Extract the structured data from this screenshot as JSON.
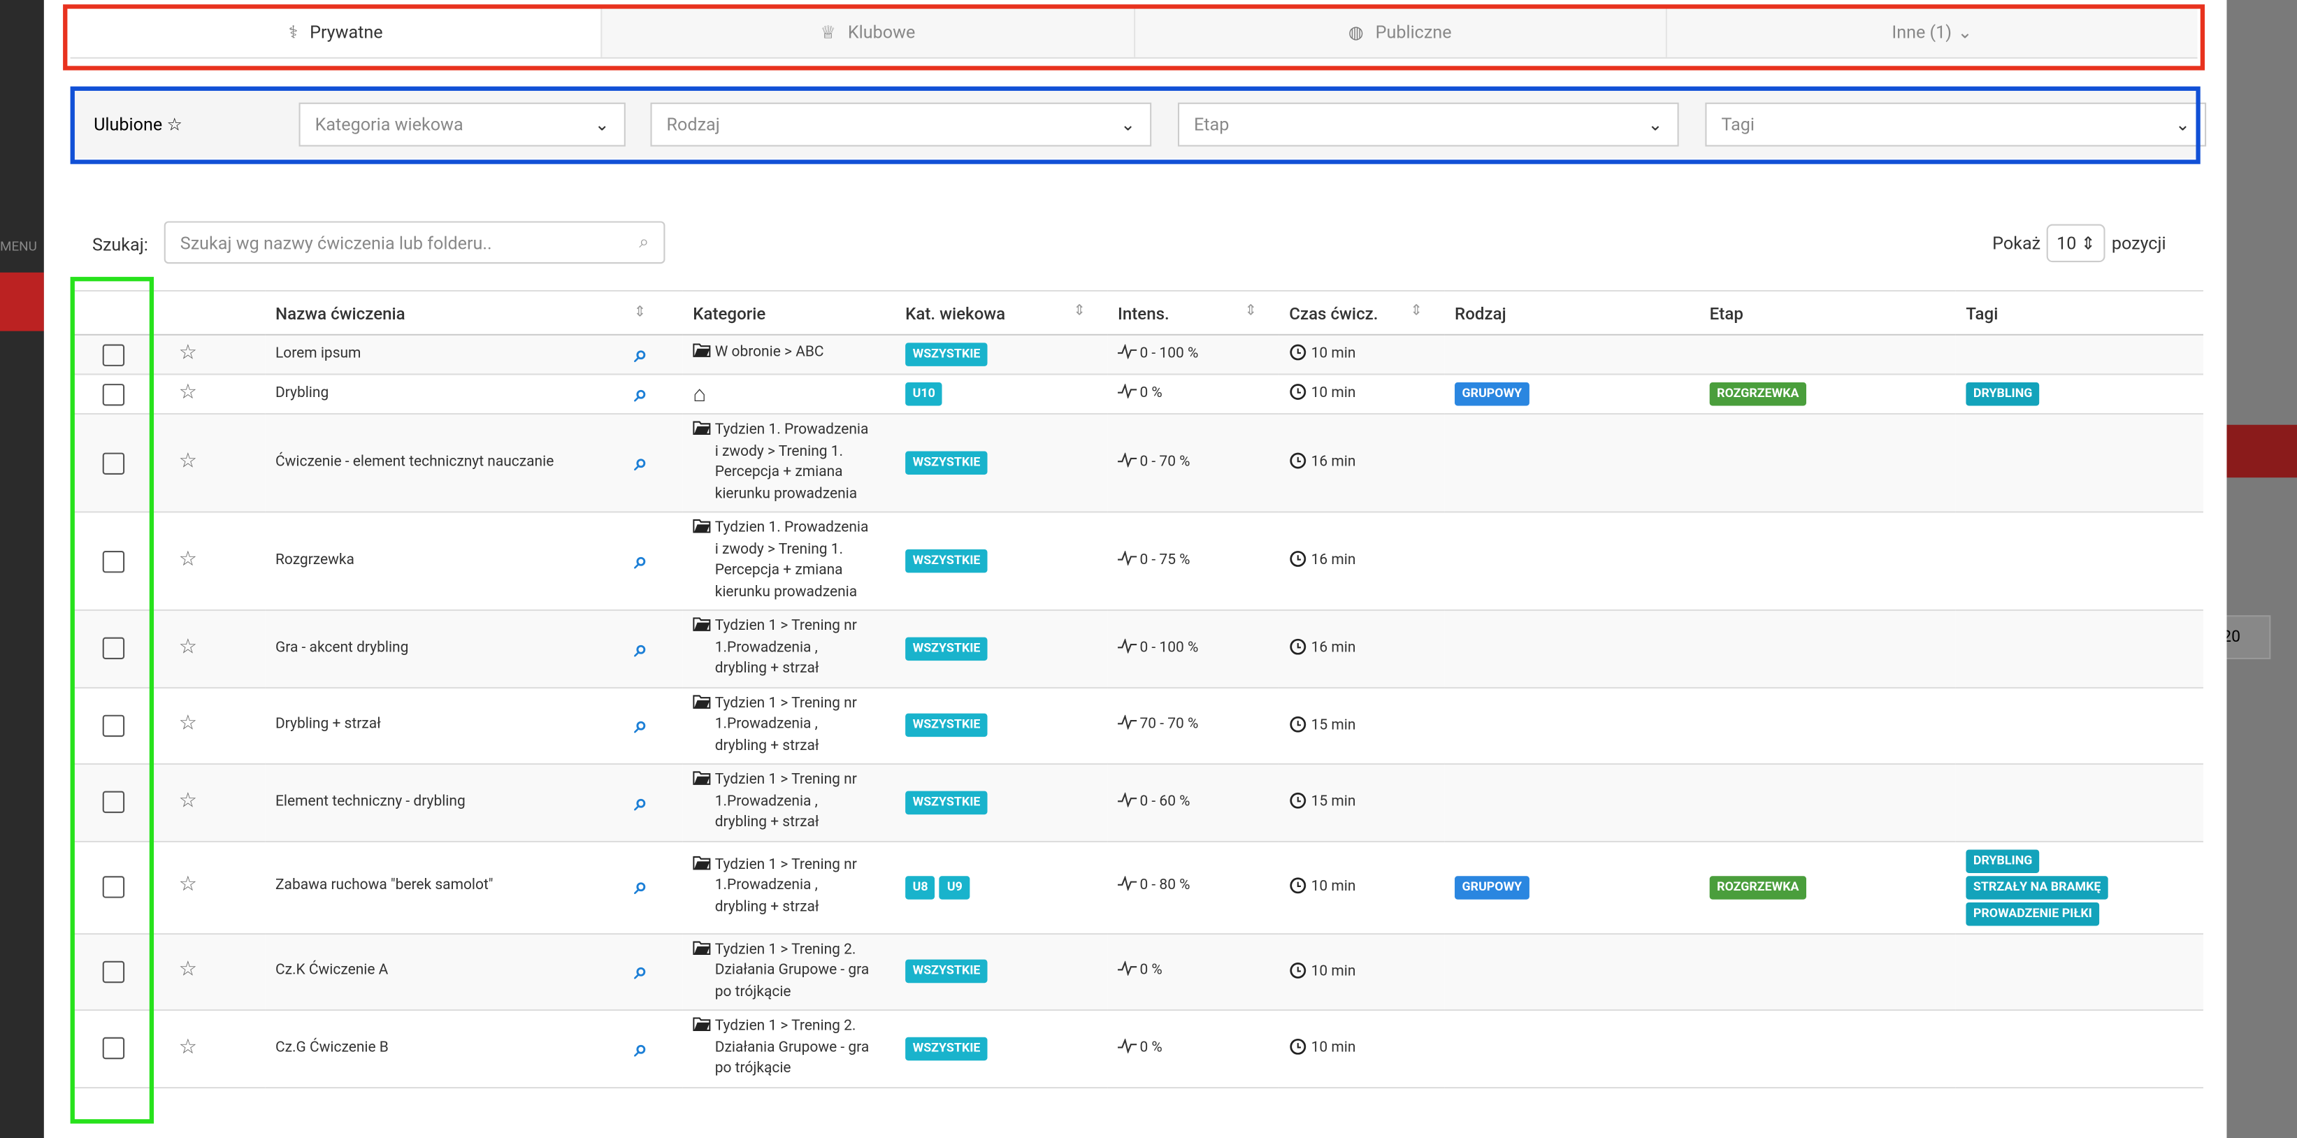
{
  "sidebar_menu": "MENU",
  "backdrop_page": "20",
  "tabs": [
    "Prywatne",
    "Klubowe",
    "Publiczne",
    "Inne (1)"
  ],
  "filters": {
    "favorites": "Ulubione",
    "selects": [
      "Kategoria wiekowa",
      "Rodzaj",
      "Etap",
      "Tagi"
    ]
  },
  "search": {
    "label": "Szukaj:",
    "placeholder": "Szukaj wg nazwy ćwiczenia lub folderu..",
    "show_before": "Pokaż",
    "page_size": 10,
    "show_after": "pozycji"
  },
  "table": {
    "headers": [
      "Nazwa ćwiczenia",
      "Kategorie",
      "Kat. wiekowa",
      "Intens.",
      "Czas ćwicz.",
      "Rodzaj",
      "Etap",
      "Tagi"
    ],
    "rows": [
      {
        "name": "Lorem ipsum",
        "category": "W obronie > ABC",
        "age": [
          "WSZYSTKIE"
        ],
        "intensity": "0 - 100 %",
        "time": "10 min",
        "type": null,
        "stage": null,
        "tags": []
      },
      {
        "name": "Drybling",
        "category": null,
        "age": [
          "U10"
        ],
        "intensity": "0 %",
        "time": "10 min",
        "type": "GRUPOWY",
        "stage": "ROZGRZEWKA",
        "tags": [
          "DRYBLING"
        ]
      },
      {
        "name": "Ćwiczenie - element technicznyt nauczanie",
        "category": "Tydzien 1. Prowadzenia i zwody > Trening 1. Percepcja + zmiana kierunku prowadzenia",
        "age": [
          "WSZYSTKIE"
        ],
        "intensity": "0 - 70 %",
        "time": "16 min",
        "type": null,
        "stage": null,
        "tags": []
      },
      {
        "name": "Rozgrzewka",
        "category": "Tydzien 1. Prowadzenia i zwody > Trening 1. Percepcja + zmiana kierunku prowadzenia",
        "age": [
          "WSZYSTKIE"
        ],
        "intensity": "0 - 75 %",
        "time": "16 min",
        "type": null,
        "stage": null,
        "tags": []
      },
      {
        "name": "Gra - akcent drybling",
        "category": "Tydzien 1 > Trening nr 1.Prowadzenia , drybling + strzał",
        "age": [
          "WSZYSTKIE"
        ],
        "intensity": "0 - 100 %",
        "time": "16 min",
        "type": null,
        "stage": null,
        "tags": []
      },
      {
        "name": "Drybling + strzał",
        "category": "Tydzien 1 > Trening nr 1.Prowadzenia , drybling + strzał",
        "age": [
          "WSZYSTKIE"
        ],
        "intensity": "70 - 70 %",
        "time": "15 min",
        "type": null,
        "stage": null,
        "tags": []
      },
      {
        "name": "Element techniczny - drybling",
        "category": "Tydzien 1 > Trening nr 1.Prowadzenia , drybling + strzał",
        "age": [
          "WSZYSTKIE"
        ],
        "intensity": "0 - 60 %",
        "time": "15 min",
        "type": null,
        "stage": null,
        "tags": []
      },
      {
        "name": "Zabawa ruchowa \"berek samolot\"",
        "category": "Tydzien 1 > Trening nr 1.Prowadzenia , drybling + strzał",
        "age": [
          "U8",
          "U9"
        ],
        "intensity": "0 - 80 %",
        "time": "10 min",
        "type": "GRUPOWY",
        "stage": "ROZGRZEWKA",
        "tags": [
          "DRYBLING",
          "STRZAŁY NA BRAMKĘ",
          "PROWADZENIE PIŁKI"
        ]
      },
      {
        "name": "Cz.K Ćwiczenie A",
        "category": "Tydzien 1 > Trening 2. Działania Grupowe - gra po trójkącie",
        "age": [
          "WSZYSTKIE"
        ],
        "intensity": "0 %",
        "time": "10 min",
        "type": null,
        "stage": null,
        "tags": []
      },
      {
        "name": "Cz.G Ćwiczenie B",
        "category": "Tydzien 1 > Trening 2. Działania Grupowe - gra po trójkącie",
        "age": [
          "WSZYSTKIE"
        ],
        "intensity": "0 %",
        "time": "10 min",
        "type": null,
        "stage": null,
        "tags": []
      }
    ]
  }
}
